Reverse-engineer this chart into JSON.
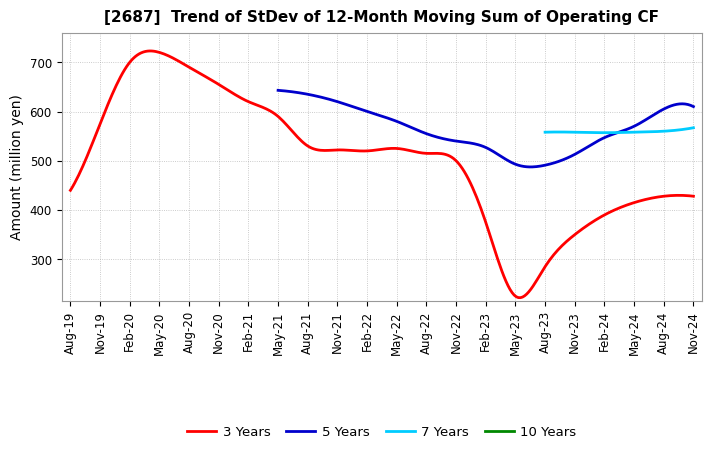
{
  "title": "[2687]  Trend of StDev of 12-Month Moving Sum of Operating CF",
  "ylabel": "Amount (million yen)",
  "background_color": "#ffffff",
  "grid_color": "#aaaaaa",
  "title_fontsize": 11,
  "ylabel_fontsize": 10,
  "tick_fontsize": 8.5,
  "legend_fontsize": 9.5,
  "ylim": [
    215,
    760
  ],
  "yticks": [
    300,
    400,
    500,
    600,
    700
  ],
  "x_labels": [
    "Aug-19",
    "Nov-19",
    "Feb-20",
    "May-20",
    "Aug-20",
    "Nov-20",
    "Feb-21",
    "May-21",
    "Aug-21",
    "Nov-21",
    "Feb-22",
    "May-22",
    "Aug-22",
    "Nov-22",
    "Feb-23",
    "May-23",
    "Aug-23",
    "Nov-23",
    "Feb-24",
    "May-24",
    "Aug-24",
    "Nov-24"
  ],
  "series_3y": {
    "label": "3 Years",
    "color": "#ff0000",
    "x_indices": [
      0,
      1,
      2,
      3,
      4,
      5,
      6,
      7,
      8,
      9,
      10,
      11,
      12,
      13,
      14,
      15,
      16,
      17,
      18,
      19,
      20,
      21
    ],
    "values": [
      440,
      575,
      700,
      720,
      690,
      655,
      620,
      590,
      530,
      522,
      520,
      525,
      515,
      500,
      375,
      225,
      285,
      350,
      390,
      415,
      428,
      428
    ]
  },
  "series_5y": {
    "label": "5 Years",
    "color": "#0000cc",
    "x_indices": [
      7,
      8,
      9,
      10,
      11,
      12,
      13,
      14,
      15,
      16,
      17,
      18,
      19,
      20,
      21
    ],
    "values": [
      643,
      635,
      620,
      600,
      580,
      555,
      540,
      527,
      493,
      491,
      513,
      547,
      570,
      605,
      610
    ]
  },
  "series_7y": {
    "label": "7 Years",
    "color": "#00ccff",
    "x_indices": [
      16,
      17,
      18,
      19,
      20,
      21
    ],
    "values": [
      558,
      558,
      557,
      558,
      560,
      567
    ]
  },
  "series_10y": {
    "label": "10 Years",
    "color": "#008800",
    "x_indices": [],
    "values": []
  }
}
